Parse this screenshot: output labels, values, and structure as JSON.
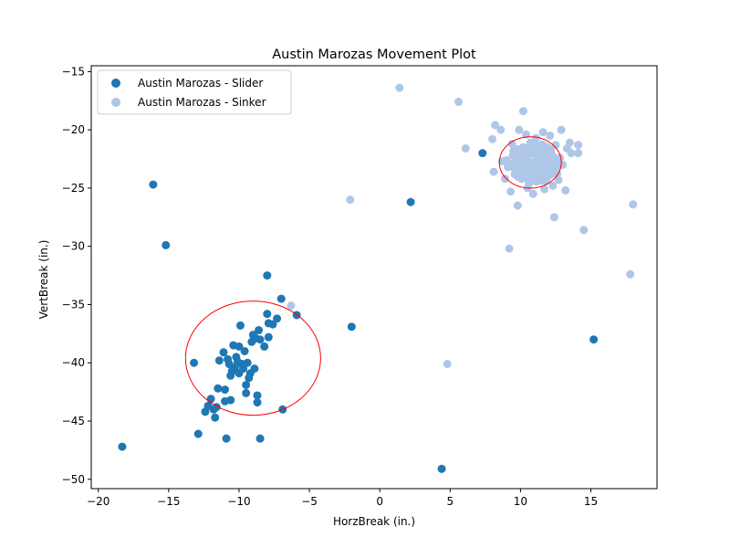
{
  "chart_data": {
    "type": "scatter",
    "title": "Austin Marozas Movement Plot",
    "xlabel": "HorzBreak (in.)",
    "ylabel": "VertBreak (in.)",
    "xlim": [
      -20.5,
      19.7
    ],
    "ylim": [
      -50.8,
      -14.5
    ],
    "xticks": [
      -20,
      -15,
      -10,
      -5,
      0,
      5,
      10,
      15
    ],
    "yticks": [
      -15,
      -20,
      -25,
      -30,
      -35,
      -40,
      -45,
      -50
    ],
    "xtick_labels": [
      "−20",
      "−15",
      "−10",
      "−5",
      "0",
      "5",
      "10",
      "15"
    ],
    "ytick_labels": [
      "−15",
      "−20",
      "−25",
      "−30",
      "−35",
      "−40",
      "−45",
      "−50"
    ],
    "grid": false,
    "legend_position": "top-left",
    "series": [
      {
        "name": "Austin Marozas - Slider",
        "color": "#1f77b4",
        "points": [
          [
            -18.3,
            -47.2
          ],
          [
            -16.1,
            -24.7
          ],
          [
            -15.2,
            -29.9
          ],
          [
            -13.2,
            -40.0
          ],
          [
            -12.9,
            -46.1
          ],
          [
            -12.4,
            -44.2
          ],
          [
            -12.2,
            -43.7
          ],
          [
            -12.0,
            -43.1
          ],
          [
            -11.8,
            -44.0
          ],
          [
            -11.7,
            -44.7
          ],
          [
            -11.6,
            -43.8
          ],
          [
            -11.5,
            -42.2
          ],
          [
            -11.4,
            -39.8
          ],
          [
            -11.1,
            -39.1
          ],
          [
            -11.0,
            -43.3
          ],
          [
            -11.0,
            -42.3
          ],
          [
            -10.9,
            -46.5
          ],
          [
            -10.8,
            -39.7
          ],
          [
            -10.7,
            -40.1
          ],
          [
            -10.6,
            -43.2
          ],
          [
            -10.6,
            -41.1
          ],
          [
            -10.5,
            -40.7
          ],
          [
            -10.4,
            -38.5
          ],
          [
            -10.3,
            -40.4
          ],
          [
            -10.2,
            -39.5
          ],
          [
            -10.1,
            -39.9
          ],
          [
            -10.0,
            -40.9
          ],
          [
            -10.0,
            -38.6
          ],
          [
            -9.9,
            -36.8
          ],
          [
            -9.8,
            -40.1
          ],
          [
            -9.7,
            -40.5
          ],
          [
            -9.6,
            -39.0
          ],
          [
            -9.5,
            -42.6
          ],
          [
            -9.5,
            -41.9
          ],
          [
            -9.4,
            -40.0
          ],
          [
            -9.3,
            -41.3
          ],
          [
            -9.2,
            -40.9
          ],
          [
            -9.1,
            -38.2
          ],
          [
            -9.0,
            -37.6
          ],
          [
            -8.9,
            -40.5
          ],
          [
            -8.8,
            -37.9
          ],
          [
            -8.7,
            -42.8
          ],
          [
            -8.7,
            -43.4
          ],
          [
            -8.6,
            -37.2
          ],
          [
            -8.5,
            -38.0
          ],
          [
            -8.5,
            -46.5
          ],
          [
            -8.2,
            -38.6
          ],
          [
            -8.0,
            -32.5
          ],
          [
            -8.0,
            -35.8
          ],
          [
            -7.9,
            -37.8
          ],
          [
            -7.9,
            -36.6
          ],
          [
            -7.6,
            -36.7
          ],
          [
            -7.3,
            -36.2
          ],
          [
            -7.0,
            -34.5
          ],
          [
            -6.9,
            -44.0
          ],
          [
            -5.9,
            -35.9
          ],
          [
            -2.0,
            -36.9
          ],
          [
            2.2,
            -26.2
          ],
          [
            4.4,
            -49.1
          ],
          [
            7.3,
            -22.0
          ],
          [
            15.2,
            -38.0
          ]
        ]
      },
      {
        "name": "Austin Marozas - Sinker",
        "color": "#aec7e8",
        "points": [
          [
            -6.3,
            -35.1
          ],
          [
            -2.1,
            -26.0
          ],
          [
            1.4,
            -16.4
          ],
          [
            4.8,
            -40.1
          ],
          [
            5.6,
            -17.6
          ],
          [
            6.1,
            -21.6
          ],
          [
            8.0,
            -20.8
          ],
          [
            8.1,
            -23.6
          ],
          [
            8.2,
            -19.6
          ],
          [
            8.6,
            -20.0
          ],
          [
            8.7,
            -22.7
          ],
          [
            9.0,
            -22.6
          ],
          [
            9.1,
            -23.2
          ],
          [
            9.2,
            -30.2
          ],
          [
            9.3,
            -25.3
          ],
          [
            9.5,
            -21.8
          ],
          [
            9.6,
            -22.9
          ],
          [
            9.7,
            -23.8
          ],
          [
            9.8,
            -26.5
          ],
          [
            9.9,
            -20.0
          ],
          [
            10.0,
            -22.4
          ],
          [
            10.1,
            -24.2
          ],
          [
            10.2,
            -21.5
          ],
          [
            10.3,
            -23.0
          ],
          [
            10.4,
            -20.4
          ],
          [
            10.5,
            -22.0
          ],
          [
            10.6,
            -24.6
          ],
          [
            10.7,
            -21.1
          ],
          [
            10.8,
            -22.8
          ],
          [
            10.9,
            -25.5
          ],
          [
            11.0,
            -23.6
          ],
          [
            11.1,
            -20.7
          ],
          [
            11.2,
            -22.2
          ],
          [
            11.3,
            -24.0
          ],
          [
            11.4,
            -21.6
          ],
          [
            11.5,
            -23.1
          ],
          [
            11.6,
            -20.2
          ],
          [
            11.7,
            -22.7
          ],
          [
            11.8,
            -24.4
          ],
          [
            11.9,
            -21.9
          ],
          [
            12.0,
            -23.5
          ],
          [
            12.1,
            -20.5
          ],
          [
            12.2,
            -22.5
          ],
          [
            12.3,
            -24.8
          ],
          [
            12.4,
            -27.5
          ],
          [
            12.5,
            -21.3
          ],
          [
            12.6,
            -23.8
          ],
          [
            12.8,
            -22.4
          ],
          [
            12.9,
            -20.0
          ],
          [
            13.0,
            -23.0
          ],
          [
            13.2,
            -25.2
          ],
          [
            13.3,
            -21.6
          ],
          [
            13.5,
            -21.1
          ],
          [
            13.6,
            -22.0
          ],
          [
            14.1,
            -21.3
          ],
          [
            14.1,
            -22.0
          ],
          [
            14.5,
            -28.6
          ],
          [
            17.8,
            -32.4
          ],
          [
            18.0,
            -26.4
          ],
          [
            10.5,
            -25.0
          ],
          [
            9.4,
            -21.2
          ],
          [
            8.9,
            -24.2
          ],
          [
            11.7,
            -25.1
          ],
          [
            12.7,
            -24.3
          ],
          [
            10.2,
            -18.4
          ]
        ]
      }
    ],
    "ellipses": [
      {
        "color": "#ff0000",
        "cx": -9.0,
        "cy": -39.6,
        "rx": 4.8,
        "ry": 4.9
      },
      {
        "color": "#ff0000",
        "cx": 10.7,
        "cy": -22.8,
        "rx": 2.2,
        "ry": 2.2
      }
    ],
    "cluster": {
      "series": 1,
      "cx": 10.9,
      "cy": -22.8,
      "rx": 1.7,
      "ry": 1.7,
      "count": 140
    }
  }
}
